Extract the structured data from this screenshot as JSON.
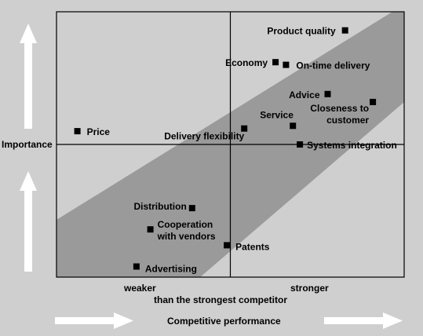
{
  "chart_data": {
    "type": "scatter",
    "title": "",
    "xlabel": "Competitive performance",
    "ylabel": "Importance",
    "x_weaker_label": "weaker",
    "x_stronger_label": "stronger",
    "x_reference_label": "than the strongest competitor",
    "xlim": [
      0,
      10
    ],
    "ylim": [
      0,
      10
    ],
    "grid": false,
    "points": [
      {
        "label": "Product quality",
        "x": 8.3,
        "y": 9.3
      },
      {
        "label": "Economy",
        "x": 6.3,
        "y": 8.1
      },
      {
        "label": "On-time delivery",
        "x": 6.6,
        "y": 8.0
      },
      {
        "label": "Advice",
        "x": 7.8,
        "y": 6.9
      },
      {
        "label": "Closeness to customer",
        "x": 9.1,
        "y": 6.6
      },
      {
        "label": "Service",
        "x": 6.8,
        "y": 5.7
      },
      {
        "label": "Price",
        "x": 0.6,
        "y": 5.5
      },
      {
        "label": "Delivery flexibility",
        "x": 5.4,
        "y": 5.6
      },
      {
        "label": "Systems integration",
        "x": 7.0,
        "y": 5.0
      },
      {
        "label": "Distribution",
        "x": 3.9,
        "y": 2.6
      },
      {
        "label": "Cooperation with vendors",
        "x": 2.7,
        "y": 1.8
      },
      {
        "label": "Patents",
        "x": 4.9,
        "y": 1.2
      },
      {
        "label": "Advertising",
        "x": 2.3,
        "y": 0.4
      }
    ]
  },
  "colors": {
    "background": "#cfcfcf",
    "band": "#9a9a9a",
    "marker": "#000000",
    "arrow": "#ffffff"
  }
}
